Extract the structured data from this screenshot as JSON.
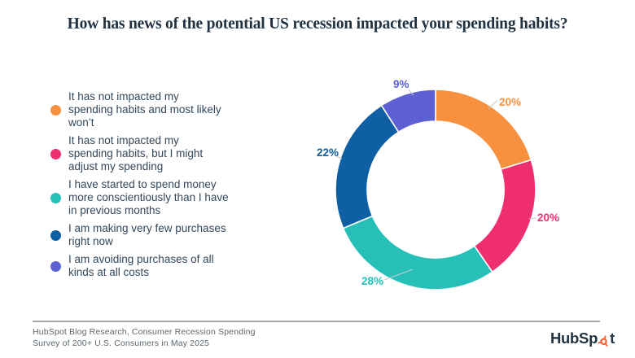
{
  "title": "How has news of the potential US recession impacted your spending habits?",
  "chart_data": {
    "type": "pie",
    "subtype": "donut",
    "title": "How has news of the potential US recession impacted your spending habits?",
    "categories": [
      "It has not impacted my spending habits and most likely won’t",
      "It has not impacted my spending habits, but I might adjust my spending",
      "I have started to spend money more conscientiously than I have in previous months",
      "I am making very few purchases right now",
      "I am avoiding purchases of all kinds at all costs"
    ],
    "values": [
      20,
      20,
      28,
      22,
      9
    ],
    "unit": "%",
    "data_labels": [
      "20%",
      "20%",
      "28%",
      "22%",
      "9%"
    ],
    "colors": [
      "#F8913F",
      "#EF2E6E",
      "#26C0B9",
      "#0E5FA4",
      "#5D60D2"
    ],
    "start_angle_deg": 0,
    "direction": "clockwise",
    "legend_position": "left",
    "donut_hole": true
  },
  "legend": {
    "items": [
      {
        "color": "#F8913F",
        "lines": [
          "It has not impacted my",
          "spending habits and most likely",
          "won’t"
        ]
      },
      {
        "color": "#EF2E6E",
        "lines": [
          "It has not impacted my",
          "spending habits, but I might",
          "adjust my spending"
        ]
      },
      {
        "color": "#26C0B9",
        "lines": [
          "I have started to spend money",
          "more conscientiously than I have",
          "in previous months"
        ]
      },
      {
        "color": "#0E5FA4",
        "lines": [
          "I am making very few purchases",
          "right now"
        ]
      },
      {
        "color": "#5D60D2",
        "lines": [
          "I am avoiding purchases of all",
          "kinds at all costs"
        ]
      }
    ]
  },
  "footer": {
    "source_line1": "HubSpot Blog Research, Consumer Recession Spending",
    "source_line2": "Survey of 200+ U.S. Consumers in May 2025",
    "logo": {
      "full": "HubSpot",
      "prefix": "HubSp",
      "suffix": "t"
    }
  },
  "theme": {
    "background": "#FFFFFF",
    "title_color": "#213343",
    "legend_text_color": "#33475B",
    "footer_text_color": "#5B6770",
    "divider_color": "#9DA6AD",
    "logo_color": "#213343",
    "logo_sprocket_color": "#FF5C35",
    "leader_line_color": "#C5CBD1"
  }
}
